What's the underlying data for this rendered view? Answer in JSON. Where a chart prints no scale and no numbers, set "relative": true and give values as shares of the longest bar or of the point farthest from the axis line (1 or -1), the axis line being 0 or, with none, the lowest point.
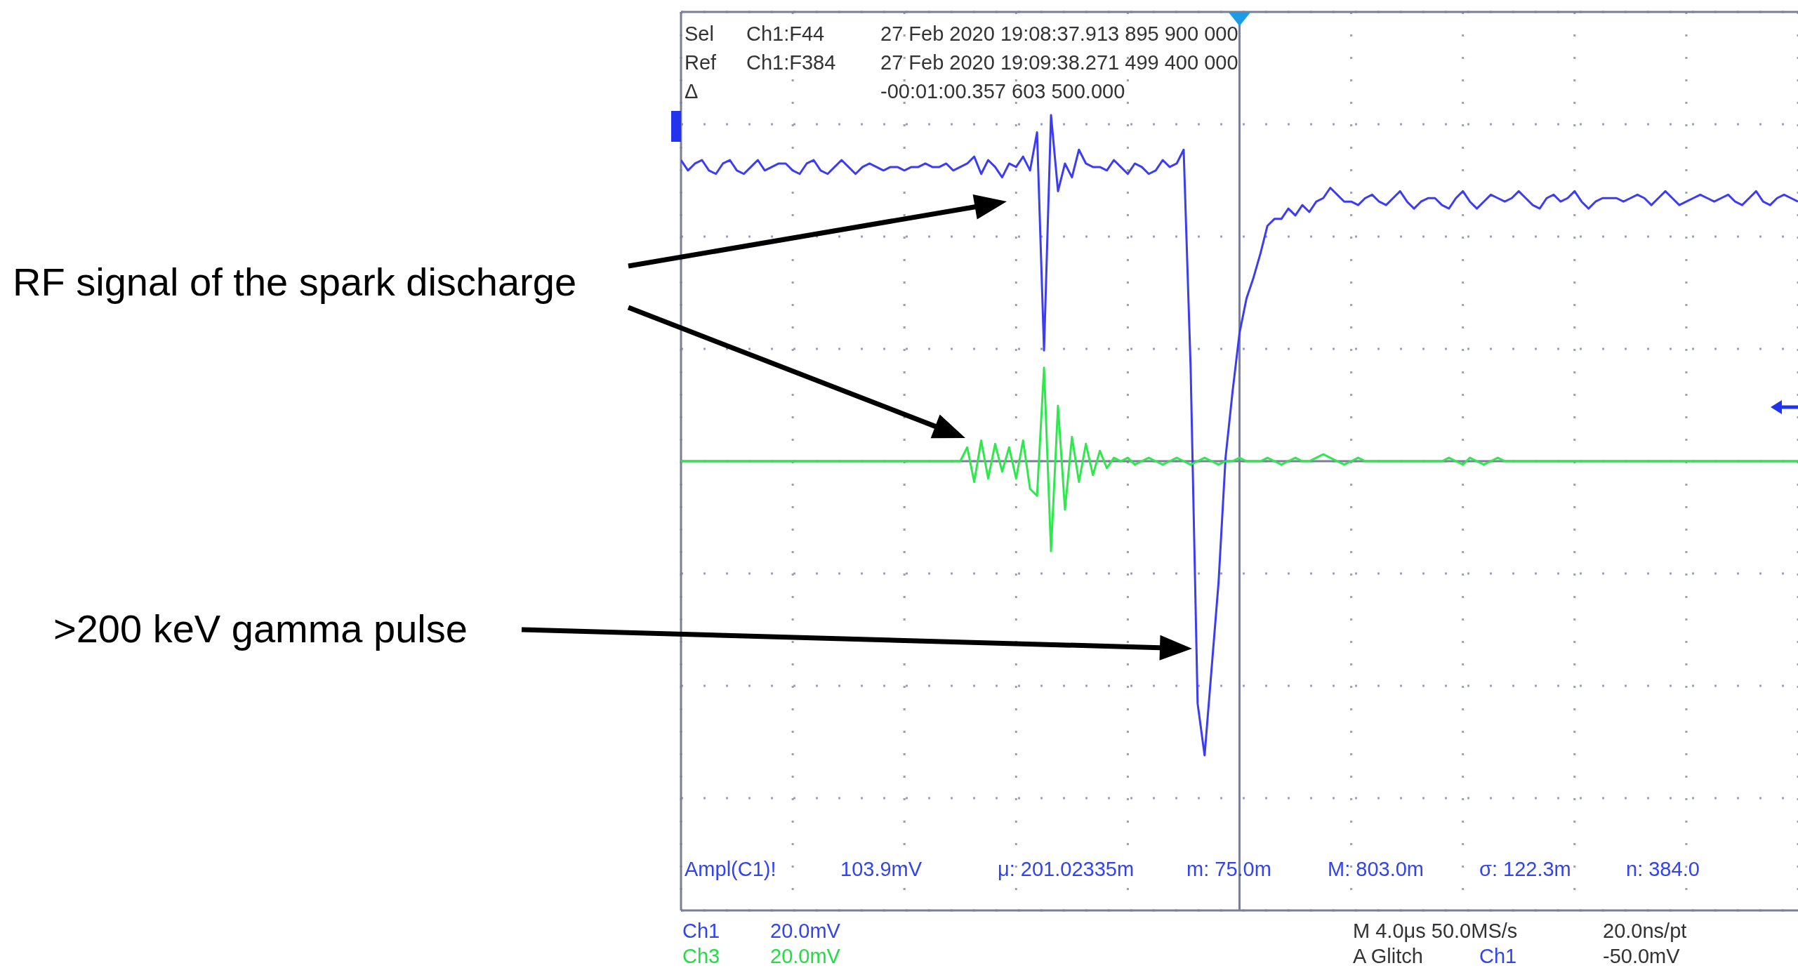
{
  "chart_data": {
    "type": "line",
    "relative": true,
    "tick_labels": false,
    "grid": true,
    "marker": "none",
    "line_style": "solid",
    "categories": [
      null,
      null,
      null,
      null,
      null,
      null,
      null,
      null,
      null,
      null,
      null,
      null,
      null,
      null,
      null,
      null,
      null,
      null,
      null,
      null,
      null,
      null,
      null,
      null,
      null,
      null,
      null,
      null,
      null,
      null,
      null,
      null,
      null,
      null,
      null,
      null,
      null,
      null,
      null,
      null,
      null,
      null,
      null,
      null,
      null,
      null,
      null,
      null,
      null,
      null,
      null,
      null,
      null,
      null,
      null,
      null,
      null,
      null,
      null,
      null,
      null,
      null,
      null,
      null,
      null,
      null,
      null,
      null,
      null,
      null,
      null,
      null,
      null,
      null,
      null,
      null,
      null,
      null,
      null,
      null,
      null,
      null,
      null,
      null,
      null,
      null,
      null,
      null,
      null,
      null,
      null,
      null,
      null,
      null,
      null,
      null,
      null,
      null,
      null,
      null,
      null,
      null,
      null,
      null,
      null,
      null,
      null,
      null,
      null,
      null,
      null,
      null,
      null,
      null,
      null,
      null,
      null,
      null,
      null,
      null,
      null,
      null,
      null,
      null,
      null,
      null,
      null,
      null,
      null,
      null,
      null,
      null,
      null,
      null,
      null,
      null,
      null,
      null,
      null,
      null,
      null,
      null,
      null,
      null,
      null,
      null,
      null,
      null,
      null,
      null,
      null,
      null,
      null,
      null,
      null,
      null,
      null,
      null,
      null,
      null,
      null
    ],
    "series": [
      {
        "color": "#3c3cf2",
        "values": [
          0.87,
          0.84,
          0.86,
          0.87,
          0.84,
          0.83,
          0.86,
          0.87,
          0.84,
          0.83,
          0.85,
          0.87,
          0.84,
          0.85,
          0.86,
          0.86,
          0.84,
          0.83,
          0.86,
          0.87,
          0.84,
          0.83,
          0.85,
          0.87,
          0.85,
          0.83,
          0.85,
          0.86,
          0.85,
          0.84,
          0.85,
          0.85,
          0.84,
          0.85,
          0.85,
          0.86,
          0.85,
          0.85,
          0.86,
          0.84,
          0.85,
          0.86,
          0.88,
          0.83,
          0.87,
          0.85,
          0.82,
          0.86,
          0.85,
          0.88,
          0.84,
          0.95,
          0.32,
          1.0,
          0.78,
          0.86,
          0.82,
          0.9,
          0.86,
          0.85,
          0.85,
          0.84,
          0.87,
          0.85,
          0.83,
          0.86,
          0.85,
          0.83,
          0.84,
          0.87,
          0.85,
          0.86,
          0.9,
          0.27,
          -0.7,
          -0.85,
          -0.6,
          -0.35,
          0.01,
          0.2,
          0.37,
          0.47,
          0.53,
          0.6,
          0.68,
          0.7,
          0.7,
          0.73,
          0.71,
          0.74,
          0.72,
          0.75,
          0.76,
          0.79,
          0.77,
          0.75,
          0.75,
          0.74,
          0.76,
          0.77,
          0.75,
          0.74,
          0.76,
          0.78,
          0.75,
          0.73,
          0.75,
          0.76,
          0.76,
          0.74,
          0.73,
          0.76,
          0.78,
          0.75,
          0.73,
          0.75,
          0.77,
          0.76,
          0.75,
          0.76,
          0.78,
          0.76,
          0.74,
          0.73,
          0.76,
          0.77,
          0.75,
          0.76,
          0.78,
          0.75,
          0.73,
          0.75,
          0.76,
          0.76,
          0.76,
          0.75,
          0.76,
          0.77,
          0.76,
          0.74,
          0.76,
          0.78,
          0.76,
          0.74,
          0.75,
          0.76,
          0.77,
          0.76,
          0.75,
          0.76,
          0.77,
          0.75,
          0.74,
          0.76,
          0.78,
          0.75,
          0.74,
          0.76,
          0.77,
          0.76,
          0.75
        ]
      },
      {
        "color": "#2ee84e",
        "values": [
          0,
          0,
          0,
          0,
          0,
          0,
          0,
          0,
          0,
          0,
          0,
          0,
          0,
          0,
          0,
          0,
          0,
          0,
          0,
          0,
          0,
          0,
          0,
          0,
          0,
          0,
          0,
          0,
          0,
          0,
          0,
          0,
          0,
          0,
          0,
          0,
          0,
          0,
          0,
          0,
          0,
          0.04,
          -0.06,
          0.06,
          -0.05,
          0.05,
          -0.03,
          0.04,
          -0.05,
          0.06,
          -0.08,
          -0.1,
          0.27,
          -0.26,
          0.16,
          -0.14,
          0.07,
          -0.06,
          0.05,
          -0.04,
          0.03,
          -0.02,
          0.01,
          0,
          0.01,
          -0.01,
          0,
          0.01,
          0,
          -0.01,
          0,
          0.01,
          0,
          -0.01,
          0,
          0.01,
          0,
          -0.01,
          0,
          0,
          0.01,
          0,
          0,
          0,
          0.01,
          0,
          -0.01,
          0,
          0.01,
          0,
          0,
          0.01,
          0.02,
          0.01,
          0,
          -0.01,
          0,
          0.01,
          0,
          0,
          0,
          0,
          0,
          0,
          0,
          0,
          0,
          0,
          0,
          0,
          0.01,
          0,
          -0.01,
          0.01,
          0,
          -0.01,
          0,
          0.01,
          0,
          0,
          0,
          0,
          0,
          0,
          0,
          0,
          0,
          0,
          0,
          0,
          0,
          0,
          0,
          0,
          0,
          0,
          0,
          0,
          0,
          0,
          0,
          0,
          0,
          0,
          0,
          0,
          0,
          0,
          0,
          0,
          0,
          0,
          0,
          0,
          0,
          0,
          0,
          0,
          0,
          0,
          0
        ]
      }
    ],
    "annotations": [
      "RF signal of the spark discharge",
      ">200 keV gamma pulse",
      "Sel",
      "Ch1:F44",
      "27 Feb 2020 19:08:37.913 895 900 000",
      "Ref",
      "Ch1:F384",
      "27 Feb 2020 19:09:38.271 499 400 000",
      "Δ",
      "-00:01:00.357 603 500.000",
      "Ampl(C1)!",
      "103.9mV",
      "μ: 201.02335m",
      "m: 75.0m",
      "M: 803.0m",
      "σ: 122.3m",
      "n: 384.0",
      "Ch1",
      "20.0mV",
      "Ch3",
      "20.0mV",
      "M 4.0μs 50.0MS/s",
      "20.0ns/pt",
      "A  Glitch",
      "Ch1",
      "-50.0mV"
    ]
  }
}
